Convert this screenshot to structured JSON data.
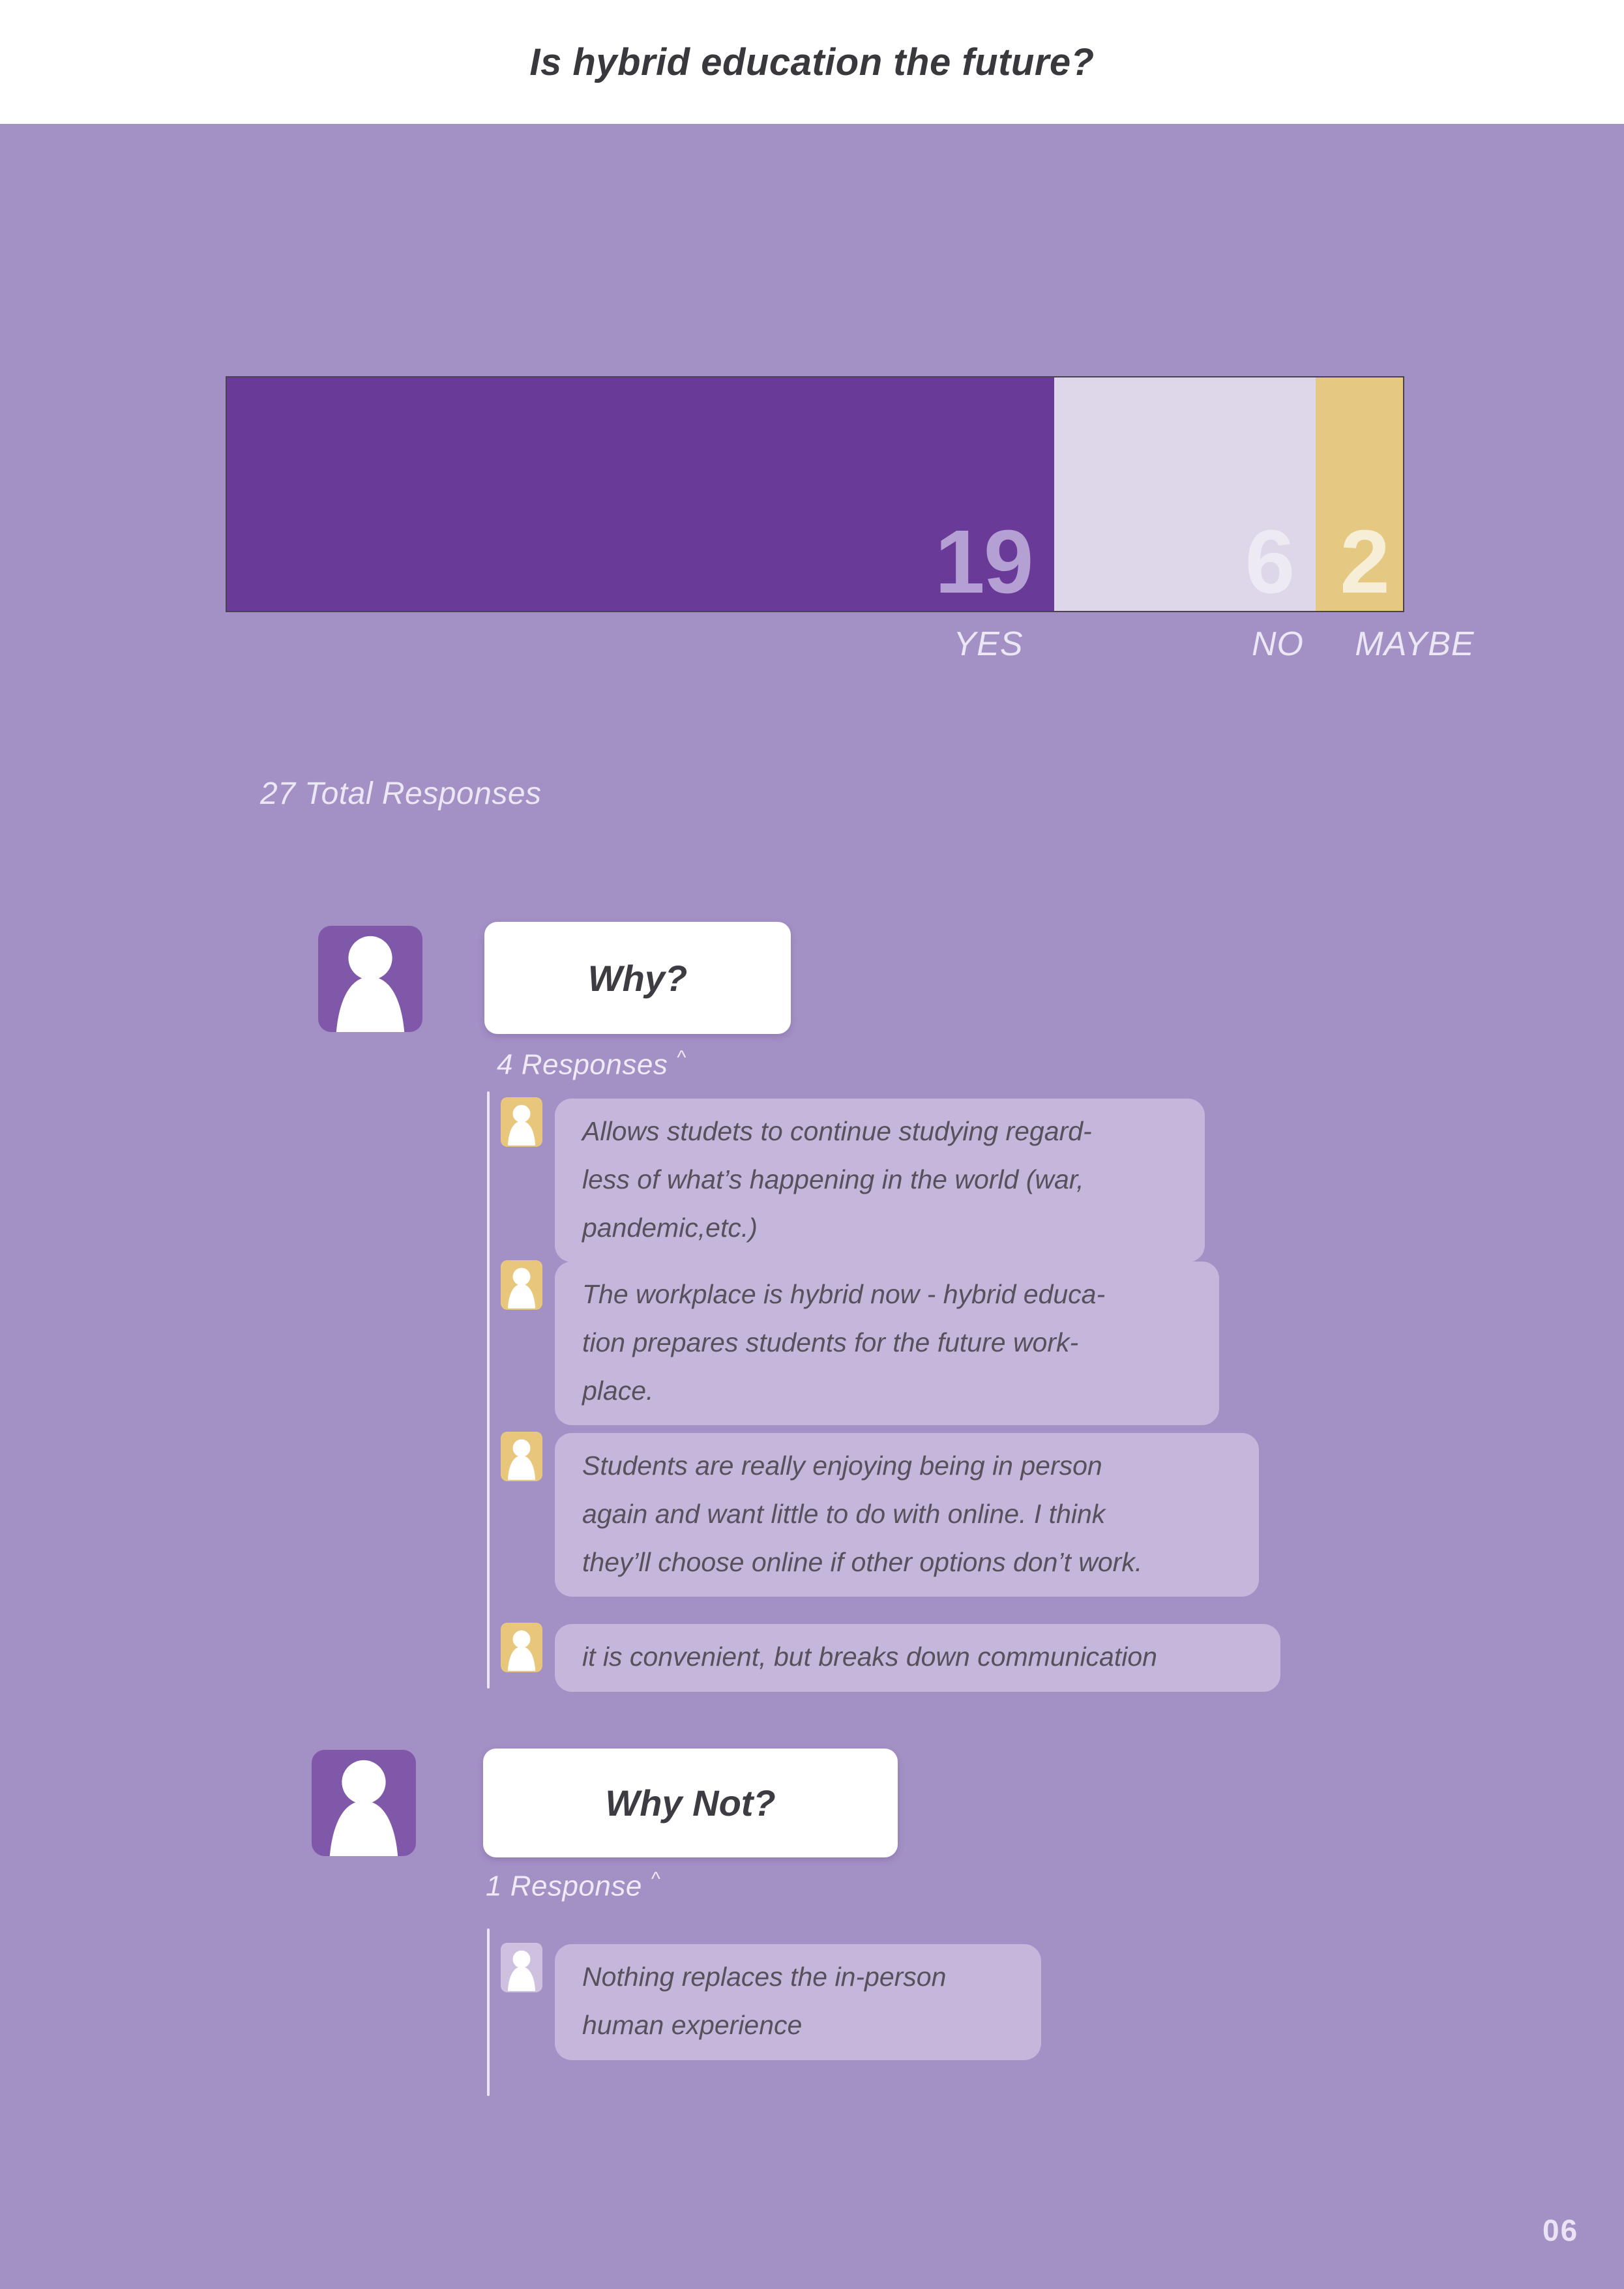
{
  "header": {
    "title": "Is hybrid education the future?"
  },
  "chart_data": {
    "type": "bar",
    "orientation": "horizontal-stacked",
    "title": "Is hybrid education the future?",
    "categories": [
      "YES",
      "NO",
      "MAYBE"
    ],
    "values": [
      19,
      6,
      2
    ],
    "total": 27,
    "colors": [
      "#693a97",
      "#ded7ea",
      "#e5c983"
    ],
    "value_label_colors": [
      "#b4a0d2",
      "#edeaf4",
      "#f6eed6"
    ],
    "legend_position": "below-bar",
    "grid": false
  },
  "summary": {
    "total_label": "27 Total Responses"
  },
  "sections": [
    {
      "question": "Why?",
      "count_label": "4 Responses",
      "caret": "^",
      "responses": [
        "Allows studets to continue studying regard-\nless of what’s happening in the world (war,\npandemic,etc.)",
        "The workplace is hybrid now - hybrid educa-\ntion prepares students for the future work-\nplace.",
        "Students are really enjoying being in person\nagain and want little to do with online. I think\nthey’ll choose online if other options don’t work.",
        "it is convenient, but breaks down communication"
      ]
    },
    {
      "question": "Why Not?",
      "count_label": "1 Response",
      "caret": "^",
      "responses": [
        "Nothing replaces the in-person\nhuman experience"
      ]
    }
  ],
  "footer": {
    "page_number": "06"
  }
}
